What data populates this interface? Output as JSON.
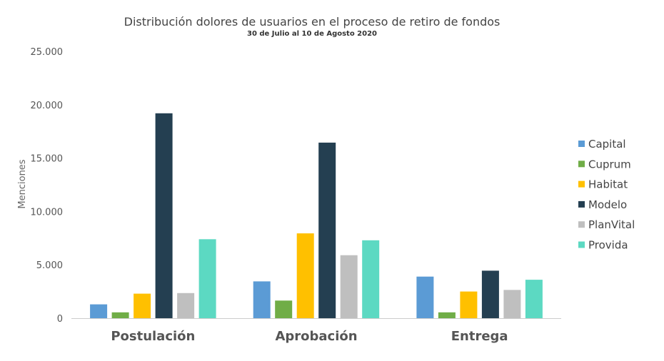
{
  "chart_data": {
    "type": "bar",
    "title": "Distribución dolores de usuarios en el proceso de retiro de fondos",
    "subtitle": "30 de Julio al 10 de Agosto 2020",
    "xlabel": "",
    "ylabel": "Menciones",
    "ylim": [
      0,
      25000
    ],
    "yticks": [
      0,
      5000,
      10000,
      15000,
      20000,
      25000
    ],
    "ytick_labels": [
      "0",
      "5.000",
      "10.000",
      "15.000",
      "20.000",
      "25.000"
    ],
    "grid": false,
    "legend_position": "right",
    "categories": [
      "Postulación",
      "Aprobación",
      "Entrega"
    ],
    "series": [
      {
        "name": "Capital",
        "color": "#5b9bd5",
        "values": [
          1300,
          3450,
          3900
        ]
      },
      {
        "name": "Cuprum",
        "color": "#70ad47",
        "values": [
          550,
          1650,
          550
        ]
      },
      {
        "name": "Habitat",
        "color": "#ffc000",
        "values": [
          2300,
          7950,
          2500
        ]
      },
      {
        "name": "Modelo",
        "color": "#243f51",
        "values": [
          19200,
          16450,
          4450
        ]
      },
      {
        "name": "PlanVital",
        "color": "#bfbfbf",
        "values": [
          2350,
          5900,
          2650
        ]
      },
      {
        "name": "Provida",
        "color": "#5cd9c2",
        "values": [
          7400,
          7300,
          3600
        ]
      }
    ]
  }
}
